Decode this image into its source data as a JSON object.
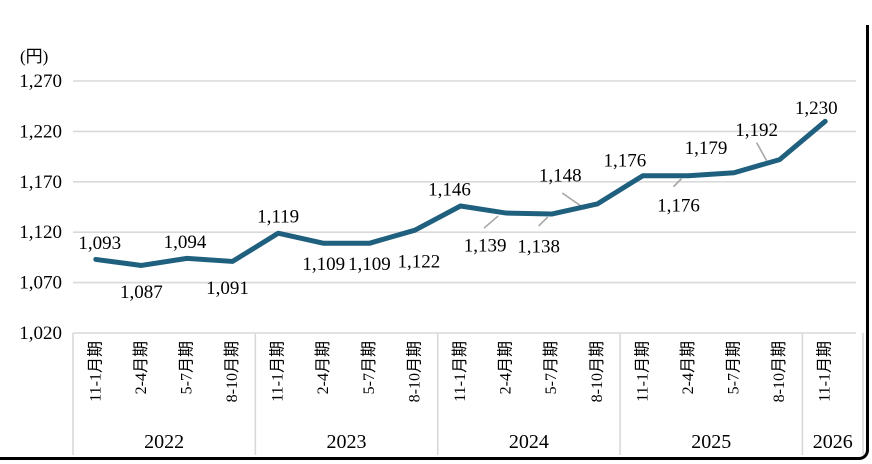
{
  "figure": {
    "unit_label": "(円)"
  },
  "chart_data": {
    "type": "line",
    "title": "",
    "xlabel": "",
    "ylabel": "(円)",
    "ylim": [
      1020,
      1270
    ],
    "grid": true,
    "legend": "none",
    "line_color": "#20607f",
    "leader_color": "#a6a6a6",
    "gridline_color": "#d9d9d9",
    "axis_table_line_color": "#d9d9d9",
    "text_color": "#000000",
    "yticks": [
      {
        "value": 1020,
        "label": "1,020"
      },
      {
        "value": 1070,
        "label": "1,070"
      },
      {
        "value": 1120,
        "label": "1,120"
      },
      {
        "value": 1170,
        "label": "1,170"
      },
      {
        "value": 1220,
        "label": "1,220"
      },
      {
        "value": 1270,
        "label": "1,270"
      }
    ],
    "year_groups": [
      {
        "year": "2022",
        "periods": [
          "11-1月期",
          "2-4月期",
          "5-7月期",
          "8-10月期"
        ]
      },
      {
        "year": "2023",
        "periods": [
          "11-1月期",
          "2-4月期",
          "5-7月期",
          "8-10月期"
        ]
      },
      {
        "year": "2024",
        "periods": [
          "11-1月期",
          "2-4月期",
          "5-7月期",
          "8-10月期"
        ]
      },
      {
        "year": "2025",
        "periods": [
          "11-1月期",
          "2-4月期",
          "5-7月期",
          "8-10月期"
        ]
      },
      {
        "year": "2026",
        "periods": [
          "11-1月期"
        ]
      }
    ],
    "points": [
      {
        "year": "2022",
        "period": "11-1月期",
        "value": 1093,
        "label": "1,093",
        "offset": [
          4,
          -17
        ],
        "leader": null
      },
      {
        "year": "2022",
        "period": "2-4月期",
        "value": 1087,
        "label": "1,087",
        "offset": [
          0,
          26
        ],
        "leader": null
      },
      {
        "year": "2022",
        "period": "5-7月期",
        "value": 1094,
        "label": "1,094",
        "offset": [
          -2,
          -17
        ],
        "leader": null
      },
      {
        "year": "2022",
        "period": "8-10月期",
        "value": 1091,
        "label": "1,091",
        "offset": [
          -5,
          26
        ],
        "leader": null
      },
      {
        "year": "2023",
        "period": "11-1月期",
        "value": 1119,
        "label": "1,119",
        "offset": [
          0,
          -17
        ],
        "leader": null
      },
      {
        "year": "2023",
        "period": "2-4月期",
        "value": 1109,
        "label": "1,109",
        "offset": [
          0,
          20
        ],
        "leader": null
      },
      {
        "year": "2023",
        "period": "5-7月期",
        "value": 1109,
        "label": "1,109",
        "offset": [
          0,
          20
        ],
        "leader": null
      },
      {
        "year": "2023",
        "period": "8-10月期",
        "value": 1122,
        "label": "1,122",
        "offset": [
          4,
          31
        ],
        "leader": null
      },
      {
        "year": "2024",
        "period": "11-1月期",
        "value": 1146,
        "label": "1,146",
        "offset": [
          -11,
          -17
        ],
        "leader": null
      },
      {
        "year": "2024",
        "period": "2-4月期",
        "value": 1139,
        "label": "1,139",
        "offset": [
          -21,
          32
        ],
        "leader": [
          -22,
          15,
          -8,
          3
        ]
      },
      {
        "year": "2024",
        "period": "5-7月期",
        "value": 1138,
        "label": "1,138",
        "offset": [
          -13,
          32
        ],
        "leader": [
          -13,
          12,
          -4,
          3
        ]
      },
      {
        "year": "2024",
        "period": "8-10月期",
        "value": 1148,
        "label": "1,148",
        "offset": [
          -37,
          -29
        ],
        "leader": [
          -35,
          -11,
          -12,
          5
        ]
      },
      {
        "year": "2025",
        "period": "11-1月期",
        "value": 1176,
        "label": "1,176",
        "offset": [
          -18,
          -16
        ],
        "leader": null
      },
      {
        "year": "2025",
        "period": "2-4月期",
        "value": 1176,
        "label": "1,176",
        "offset": [
          -10,
          29
        ],
        "leader": [
          -15,
          11,
          -7,
          3
        ]
      },
      {
        "year": "2025",
        "period": "5-7月期",
        "value": 1179,
        "label": "1,179",
        "offset": [
          -28,
          -25
        ],
        "leader": null
      },
      {
        "year": "2025",
        "period": "8-10月期",
        "value": 1192,
        "label": "1,192",
        "offset": [
          -23,
          -30
        ],
        "leader": [
          -23,
          -17,
          -13,
          1
        ]
      },
      {
        "year": "2026",
        "period": "11-1月期",
        "value": 1230,
        "label": "1,230",
        "offset": [
          -9,
          -14
        ],
        "leader": null
      }
    ]
  }
}
